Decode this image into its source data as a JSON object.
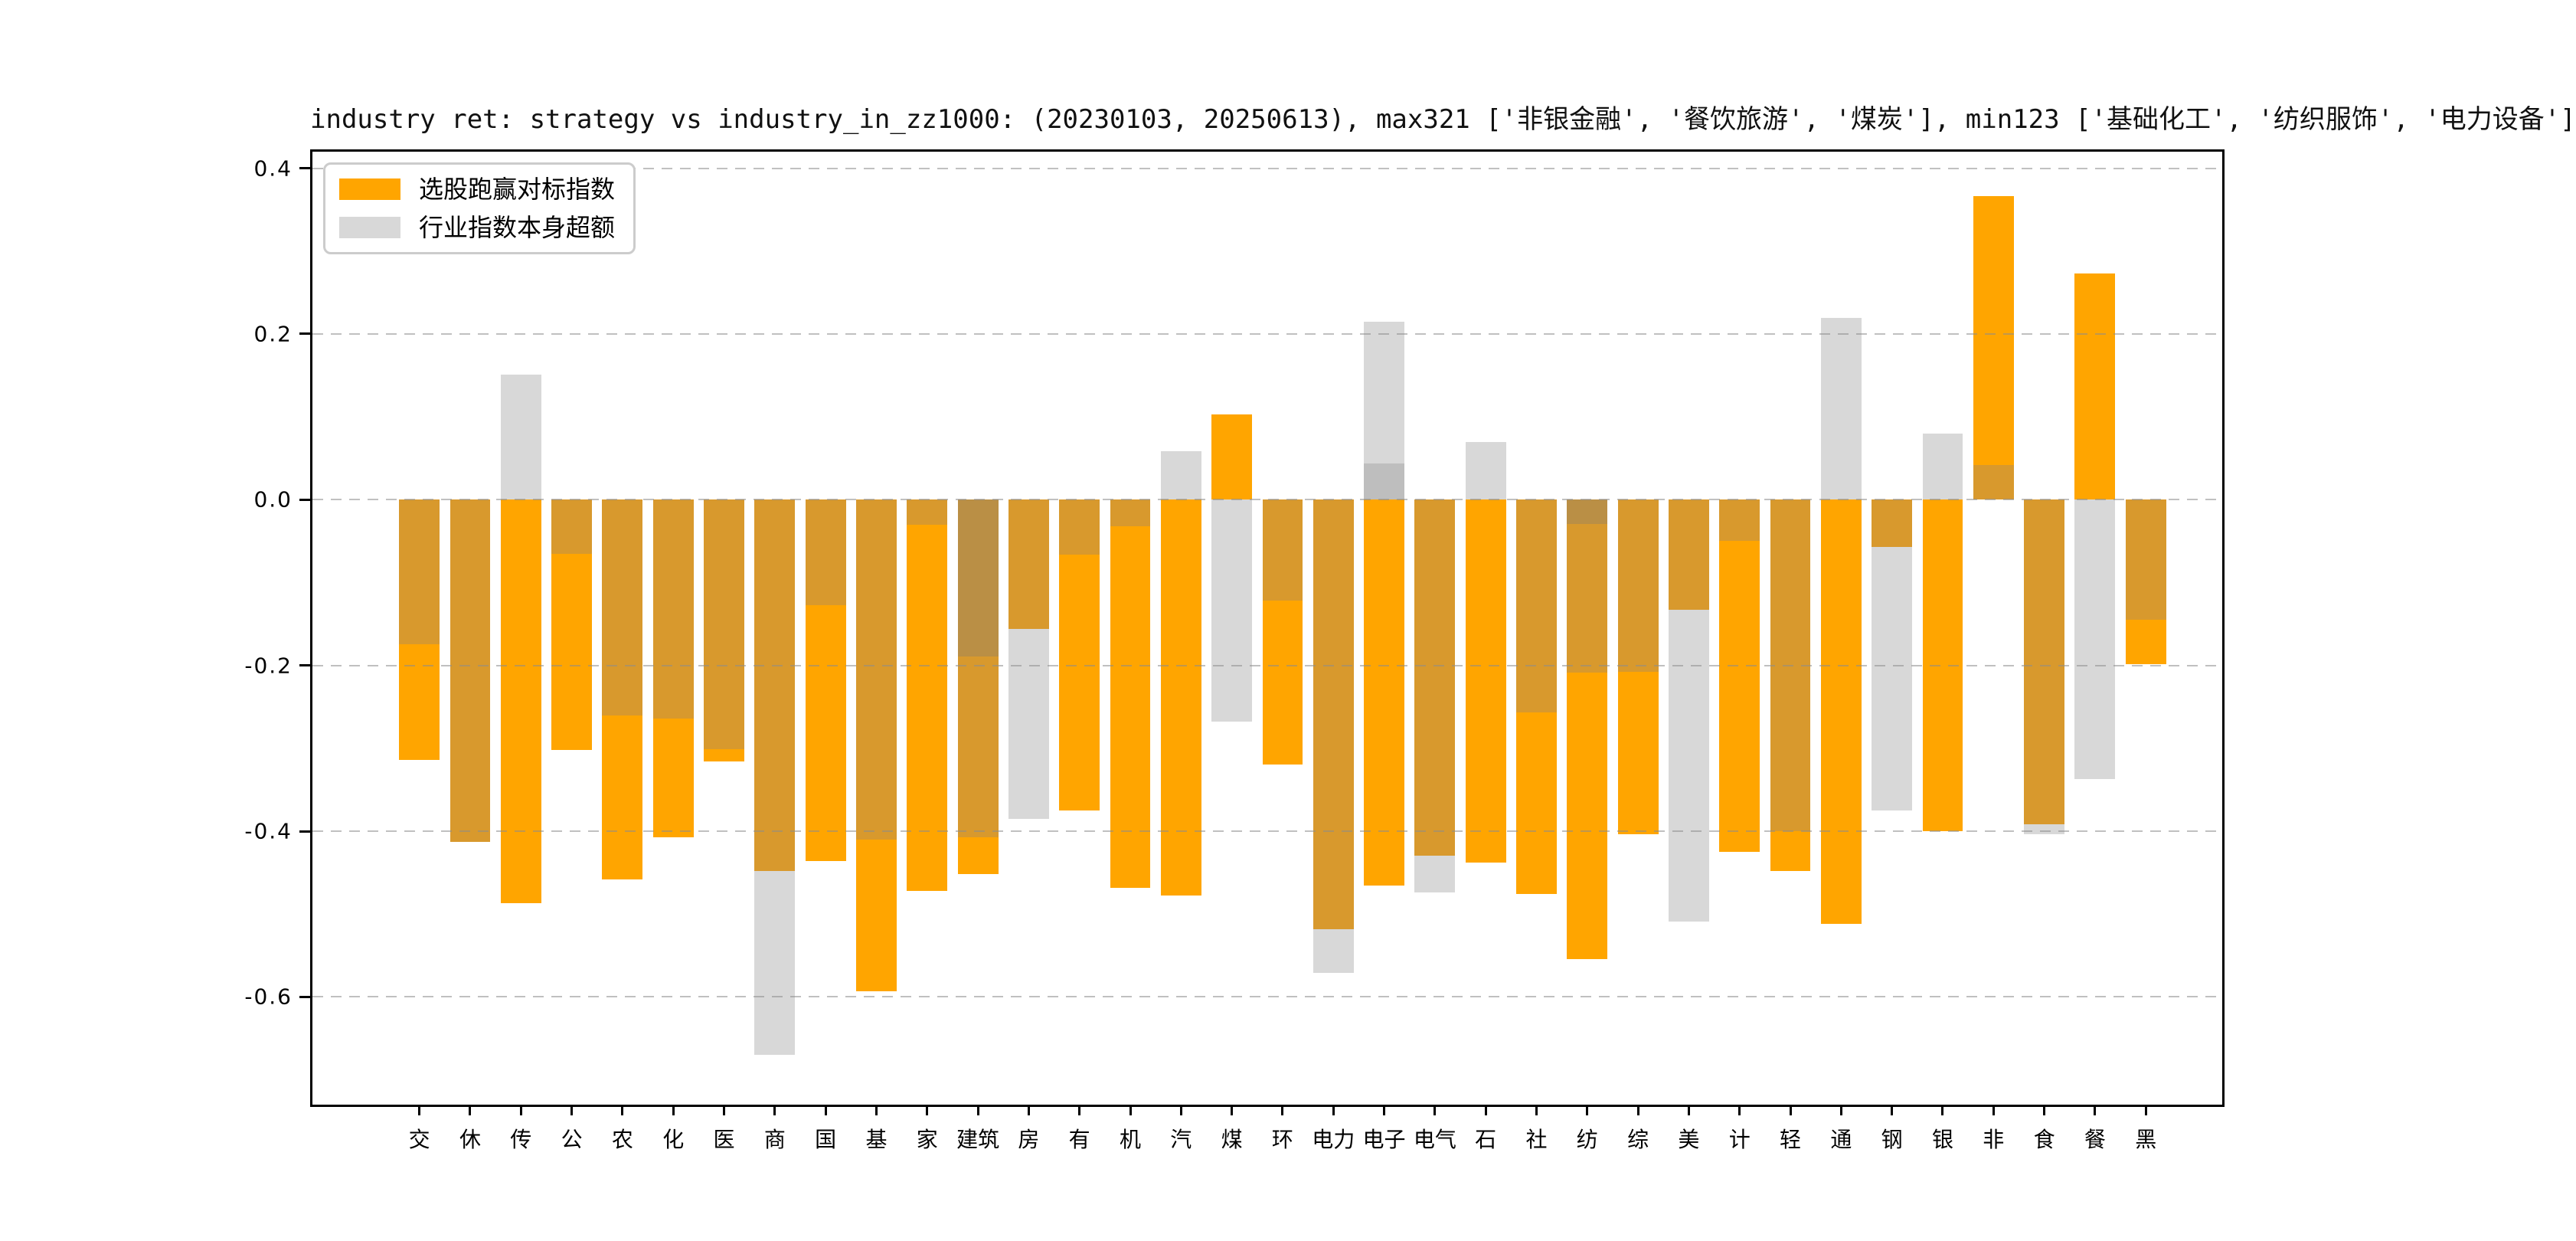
{
  "chart_data": {
    "type": "bar",
    "title": "industry ret: strategy vs industry_in_zz1000: (20230103, 20250613), max321 ['非银金融', '餐饮旅游', '煤炭'], min123 ['基础化工', '纺织服饰', '电力设备']",
    "categories": [
      "交",
      "休",
      "传",
      "公",
      "农",
      "化",
      "医",
      "商",
      "国",
      "基",
      "家",
      "建筑",
      "房",
      "有",
      "机",
      "汽",
      "煤",
      "环",
      "电力",
      "电子",
      "电气",
      "石",
      "社",
      "纺",
      "综",
      "美",
      "计",
      "轻",
      "通",
      "钢",
      "银",
      "非",
      "食",
      "餐",
      "黑"
    ],
    "series": [
      {
        "name": "选股跑赢对标指数",
        "color": "#FFA500",
        "values": [
          -0.314,
          -0.413,
          -0.487,
          -0.302,
          -0.458,
          -0.407,
          -0.316,
          -0.448,
          -0.436,
          -0.593,
          -0.472,
          -0.452,
          -0.156,
          -0.375,
          -0.468,
          -0.478,
          0.103,
          -0.32,
          -0.518,
          -0.466,
          -0.43,
          -0.438,
          -0.476,
          -0.554,
          -0.404,
          -0.133,
          -0.425,
          -0.448,
          -0.512,
          -0.057,
          -0.4,
          0.366,
          -0.392,
          0.273,
          -0.198
        ]
      },
      {
        "name": "行业指数本身超额",
        "color": "#D8D8D8",
        "values": [
          -0.174,
          -0.413,
          0.151,
          -0.065,
          -0.26,
          -0.264,
          -0.301,
          -0.67,
          -0.127,
          -0.41,
          -0.03,
          -0.407,
          -0.385,
          -0.066,
          -0.032,
          0.059,
          -0.268,
          -0.122,
          -0.571,
          0.215,
          -0.474,
          0.07,
          -0.257,
          -0.209,
          -0.208,
          -0.509,
          -0.05,
          -0.4,
          0.219,
          -0.375,
          0.08,
          0.042,
          -0.404,
          -0.337,
          -0.145
        ]
      }
    ],
    "ylim": [
      -0.73,
      0.42
    ],
    "xlabel": "",
    "ylabel": "",
    "grid": {
      "orientation": "horizontal",
      "style": "dashed",
      "color": "#c9c9c9"
    },
    "legend_position": "upper left",
    "y_ticks": [
      {
        "label": "0.4",
        "value": 0.4
      },
      {
        "label": "0.2",
        "value": 0.2
      },
      {
        "label": "0.0",
        "value": 0.0
      },
      {
        "label": "-0.2",
        "value": -0.2
      },
      {
        "label": "-0.4",
        "value": -0.4
      },
      {
        "label": "-0.6",
        "value": -0.6
      }
    ],
    "bar_colors": {
      "orange": "#FFA500",
      "tan": "#D8992D",
      "gray": "#D8D8D8",
      "brown": "#BA8F45",
      "gray2": "#BEBEBE"
    },
    "bar_segments": [
      {
        "label": "交",
        "segments": [
          [
            "tan",
            0,
            -0.174
          ],
          [
            "orange",
            -0.174,
            -0.314
          ]
        ]
      },
      {
        "label": "休",
        "segments": [
          [
            "tan",
            0,
            -0.413
          ]
        ]
      },
      {
        "label": "传",
        "segments": [
          [
            "gray",
            0.151,
            0
          ],
          [
            "orange",
            0,
            -0.487
          ]
        ]
      },
      {
        "label": "公",
        "segments": [
          [
            "tan",
            0,
            -0.065
          ],
          [
            "orange",
            -0.065,
            -0.302
          ]
        ]
      },
      {
        "label": "农",
        "segments": [
          [
            "tan",
            0,
            -0.26
          ],
          [
            "orange",
            -0.26,
            -0.458
          ]
        ]
      },
      {
        "label": "化",
        "segments": [
          [
            "tan",
            0,
            -0.264
          ],
          [
            "orange",
            -0.264,
            -0.407
          ]
        ]
      },
      {
        "label": "医",
        "segments": [
          [
            "tan",
            0,
            -0.301
          ],
          [
            "orange",
            -0.301,
            -0.316
          ]
        ]
      },
      {
        "label": "商",
        "segments": [
          [
            "tan",
            0,
            -0.448
          ],
          [
            "gray",
            -0.448,
            -0.67
          ]
        ]
      },
      {
        "label": "国",
        "segments": [
          [
            "tan",
            0,
            -0.127
          ],
          [
            "orange",
            -0.127,
            -0.436
          ]
        ]
      },
      {
        "label": "基",
        "segments": [
          [
            "tan",
            0,
            -0.41
          ],
          [
            "orange",
            -0.41,
            -0.593
          ]
        ]
      },
      {
        "label": "家",
        "segments": [
          [
            "tan",
            0,
            -0.03
          ],
          [
            "orange",
            -0.03,
            -0.472
          ]
        ]
      },
      {
        "label": "建筑",
        "segments": [
          [
            "brown",
            0,
            -0.189
          ],
          [
            "tan",
            -0.189,
            -0.407
          ],
          [
            "orange",
            -0.407,
            -0.452
          ]
        ]
      },
      {
        "label": "房",
        "segments": [
          [
            "tan",
            0,
            -0.156
          ],
          [
            "gray",
            -0.156,
            -0.385
          ]
        ]
      },
      {
        "label": "有",
        "segments": [
          [
            "tan",
            0,
            -0.066
          ],
          [
            "orange",
            -0.066,
            -0.375
          ]
        ]
      },
      {
        "label": "机",
        "segments": [
          [
            "tan",
            0,
            -0.032
          ],
          [
            "orange",
            -0.032,
            -0.468
          ]
        ]
      },
      {
        "label": "汽",
        "segments": [
          [
            "gray",
            0.059,
            0
          ],
          [
            "orange",
            0,
            -0.478
          ]
        ]
      },
      {
        "label": "煤",
        "segments": [
          [
            "orange",
            0.103,
            0
          ],
          [
            "gray",
            0,
            -0.268
          ]
        ]
      },
      {
        "label": "环",
        "segments": [
          [
            "tan",
            0,
            -0.122
          ],
          [
            "orange",
            -0.122,
            -0.32
          ]
        ]
      },
      {
        "label": "电力",
        "segments": [
          [
            "tan",
            0,
            -0.518
          ],
          [
            "gray",
            -0.518,
            -0.571
          ]
        ]
      },
      {
        "label": "电子",
        "segments": [
          [
            "gray",
            0.215,
            0.044
          ],
          [
            "gray2",
            0.044,
            0
          ],
          [
            "orange",
            0,
            -0.466
          ]
        ]
      },
      {
        "label": "电气",
        "segments": [
          [
            "tan",
            0,
            -0.43
          ],
          [
            "gray",
            -0.43,
            -0.474
          ]
        ]
      },
      {
        "label": "石",
        "segments": [
          [
            "gray",
            0.07,
            0
          ],
          [
            "orange",
            0,
            -0.438
          ]
        ]
      },
      {
        "label": "社",
        "segments": [
          [
            "tan",
            0,
            -0.257
          ],
          [
            "orange",
            -0.257,
            -0.476
          ]
        ]
      },
      {
        "label": "纺",
        "segments": [
          [
            "brown",
            0,
            -0.029
          ],
          [
            "tan",
            -0.029,
            -0.209
          ],
          [
            "orange",
            -0.209,
            -0.554
          ]
        ]
      },
      {
        "label": "综",
        "segments": [
          [
            "tan",
            0,
            -0.208
          ],
          [
            "orange",
            -0.208,
            -0.404
          ]
        ]
      },
      {
        "label": "美",
        "segments": [
          [
            "tan",
            0,
            -0.133
          ],
          [
            "gray",
            -0.133,
            -0.509
          ]
        ]
      },
      {
        "label": "计",
        "segments": [
          [
            "tan",
            0,
            -0.05
          ],
          [
            "orange",
            -0.05,
            -0.425
          ]
        ]
      },
      {
        "label": "轻",
        "segments": [
          [
            "tan",
            0,
            -0.4
          ],
          [
            "orange",
            -0.4,
            -0.448
          ]
        ]
      },
      {
        "label": "通",
        "segments": [
          [
            "gray",
            0.219,
            0
          ],
          [
            "orange",
            0,
            -0.512
          ]
        ]
      },
      {
        "label": "钢",
        "segments": [
          [
            "tan",
            0,
            -0.057
          ],
          [
            "gray",
            -0.057,
            -0.375
          ]
        ]
      },
      {
        "label": "银",
        "segments": [
          [
            "gray",
            0.08,
            0
          ],
          [
            "orange",
            0,
            -0.4
          ]
        ]
      },
      {
        "label": "非",
        "segments": [
          [
            "orange",
            0.366,
            0.042
          ],
          [
            "tan",
            0.042,
            0
          ]
        ]
      },
      {
        "label": "食",
        "segments": [
          [
            "tan",
            0,
            -0.392
          ],
          [
            "gray",
            -0.392,
            -0.404
          ]
        ]
      },
      {
        "label": "餐",
        "segments": [
          [
            "orange",
            0.273,
            0
          ],
          [
            "gray",
            0,
            -0.337
          ]
        ]
      },
      {
        "label": "黑",
        "segments": [
          [
            "tan",
            0,
            -0.145
          ],
          [
            "orange",
            -0.145,
            -0.198
          ]
        ]
      }
    ],
    "layout": {
      "first_bar_center_frac": 0.056,
      "bar_step_frac": 0.026588,
      "bar_width_frac": 0.0212
    }
  }
}
